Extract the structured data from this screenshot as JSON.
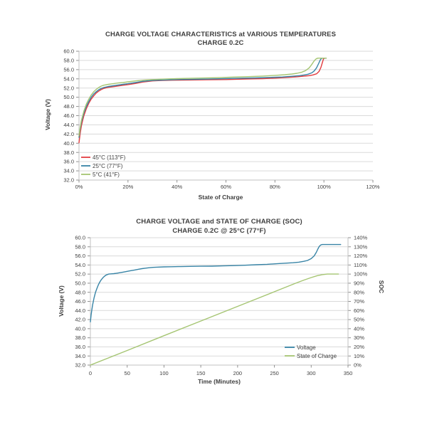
{
  "page": {
    "background": "#ffffff"
  },
  "colors": {
    "grid": "#dadada",
    "axis_line": "#c0c0c0",
    "tick_mark": "#8f8f8f",
    "text": "#3f3f3f",
    "series_red": "#e23c40",
    "series_blue": "#3884a6",
    "series_green": "#a5c572"
  },
  "chart_data": [
    {
      "type": "line",
      "title": "CHARGE VOLTAGE CHARACTERISTICS at VARIOUS TEMPERATURES",
      "subtitle": "CHARGE 0.2C",
      "xlabel": "State of Charge",
      "ylabel": "Voltage (V)",
      "xlim": [
        0,
        120
      ],
      "ylim": [
        32,
        60
      ],
      "grid": "horizontal",
      "legend_position": "inside-bottom-left",
      "xtick_labels": [
        "0%",
        "20%",
        "40%",
        "60%",
        "80%",
        "100%",
        "120%"
      ],
      "ytick_labels": [
        "60.0",
        "58.0",
        "56.0",
        "54.0",
        "52.0",
        "50.0",
        "48.0",
        "46.0",
        "44.0",
        "42.0",
        "40.0",
        "38.0",
        "36.0",
        "34.0",
        "32.0"
      ],
      "series": [
        {
          "name": "45°C (113°F)",
          "color": "#e23c40",
          "axis": "left",
          "points": [
            [
              0,
              40.1
            ],
            [
              0.5,
              42.2
            ],
            [
              1,
              43.8
            ],
            [
              1.5,
              45.0
            ],
            [
              2,
              46.0
            ],
            [
              3,
              47.5
            ],
            [
              4,
              48.7
            ],
            [
              5,
              49.6
            ],
            [
              6,
              50.3
            ],
            [
              7,
              50.9
            ],
            [
              8,
              51.3
            ],
            [
              9,
              51.65
            ],
            [
              10,
              51.9
            ],
            [
              11,
              52.05
            ],
            [
              12,
              52.15
            ],
            [
              14,
              52.3
            ],
            [
              16,
              52.45
            ],
            [
              18,
              52.6
            ],
            [
              20,
              52.75
            ],
            [
              23,
              53.0
            ],
            [
              26,
              53.3
            ],
            [
              30,
              53.55
            ],
            [
              34,
              53.65
            ],
            [
              38,
              53.7
            ],
            [
              45,
              53.75
            ],
            [
              52,
              53.8
            ],
            [
              60,
              53.85
            ],
            [
              68,
              53.95
            ],
            [
              75,
              54.05
            ],
            [
              80,
              54.15
            ],
            [
              85,
              54.3
            ],
            [
              89,
              54.45
            ],
            [
              92,
              54.6
            ],
            [
              94,
              54.7
            ],
            [
              95.5,
              54.85
            ],
            [
              97,
              55.1
            ],
            [
              98,
              55.6
            ],
            [
              98.8,
              56.5
            ],
            [
              99.4,
              57.6
            ],
            [
              99.8,
              58.3
            ],
            [
              100.2,
              58.5
            ],
            [
              100.9,
              58.5
            ]
          ]
        },
        {
          "name": "25°C (77°F)",
          "color": "#3884a6",
          "axis": "left",
          "points": [
            [
              0,
              41.3
            ],
            [
              0.5,
              43.2
            ],
            [
              1,
              44.6
            ],
            [
              2,
              46.6
            ],
            [
              3,
              48.0
            ],
            [
              4,
              49.1
            ],
            [
              5,
              50.0
            ],
            [
              6,
              50.7
            ],
            [
              7,
              51.2
            ],
            [
              8,
              51.6
            ],
            [
              9,
              51.9
            ],
            [
              10,
              52.1
            ],
            [
              12,
              52.35
            ],
            [
              14,
              52.5
            ],
            [
              16,
              52.65
            ],
            [
              18,
              52.8
            ],
            [
              20,
              52.95
            ],
            [
              23,
              53.2
            ],
            [
              26,
              53.45
            ],
            [
              30,
              53.65
            ],
            [
              35,
              53.75
            ],
            [
              40,
              53.85
            ],
            [
              48,
              53.9
            ],
            [
              56,
              54.0
            ],
            [
              64,
              54.1
            ],
            [
              72,
              54.2
            ],
            [
              78,
              54.3
            ],
            [
              83,
              54.4
            ],
            [
              87,
              54.55
            ],
            [
              90,
              54.7
            ],
            [
              92,
              54.85
            ],
            [
              93.5,
              55.0
            ],
            [
              95,
              55.3
            ],
            [
              96,
              55.7
            ],
            [
              97,
              56.4
            ],
            [
              97.8,
              57.3
            ],
            [
              98.5,
              58.1
            ],
            [
              99,
              58.45
            ],
            [
              99.5,
              58.5
            ],
            [
              100.9,
              58.5
            ]
          ]
        },
        {
          "name": "5°C (41°F)",
          "color": "#a5c572",
          "axis": "left",
          "points": [
            [
              0,
              41.6
            ],
            [
              0.5,
              43.5
            ],
            [
              1,
              45.0
            ],
            [
              2,
              47.0
            ],
            [
              3,
              48.5
            ],
            [
              4,
              49.6
            ],
            [
              5,
              50.5
            ],
            [
              6,
              51.2
            ],
            [
              7,
              51.7
            ],
            [
              8,
              52.1
            ],
            [
              9,
              52.4
            ],
            [
              10,
              52.6
            ],
            [
              12,
              52.8
            ],
            [
              14,
              52.95
            ],
            [
              16,
              53.1
            ],
            [
              18,
              53.2
            ],
            [
              20,
              53.35
            ],
            [
              23,
              53.55
            ],
            [
              26,
              53.7
            ],
            [
              30,
              53.85
            ],
            [
              35,
              53.95
            ],
            [
              40,
              54.05
            ],
            [
              48,
              54.15
            ],
            [
              56,
              54.25
            ],
            [
              64,
              54.4
            ],
            [
              70,
              54.5
            ],
            [
              75,
              54.6
            ],
            [
              80,
              54.75
            ],
            [
              84,
              54.9
            ],
            [
              87,
              55.05
            ],
            [
              89,
              55.2
            ],
            [
              91,
              55.45
            ],
            [
              92.5,
              55.8
            ],
            [
              94,
              56.4
            ],
            [
              95,
              57.1
            ],
            [
              96,
              57.9
            ],
            [
              96.8,
              58.35
            ],
            [
              97.5,
              58.5
            ],
            [
              100.9,
              58.5
            ]
          ]
        }
      ]
    },
    {
      "type": "line",
      "title": "CHARGE VOLTAGE and STATE OF CHARGE (SOC)",
      "subtitle": "CHARGE 0.2C @ 25°C (77°F)",
      "xlabel": "Time (Minutes)",
      "ylabel_left": "Voltage (V)",
      "ylabel_right": "SOC",
      "xlim": [
        0,
        350
      ],
      "ylim_left": [
        32,
        60
      ],
      "ylim_right": [
        0,
        140
      ],
      "grid": "horizontal",
      "legend_position": "inside-bottom-right",
      "xtick_labels": [
        "0",
        "50",
        "100",
        "150",
        "200",
        "250",
        "300",
        "350"
      ],
      "ytick_labels_left": [
        "60.0",
        "58.0",
        "56.0",
        "54.0",
        "52.0",
        "50.0",
        "48.0",
        "46.0",
        "44.0",
        "42.0",
        "40.0",
        "38.0",
        "36.0",
        "34.0",
        "32.0"
      ],
      "ytick_labels_right": [
        "140%",
        "130%",
        "120%",
        "110%",
        "100%",
        "90%",
        "80%",
        "70%",
        "60%",
        "50%",
        "40%",
        "30%",
        "20%",
        "10%",
        "0%"
      ],
      "series": [
        {
          "name": "Voltage",
          "color": "#3884a6",
          "axis": "left",
          "points": [
            [
              0,
              41.5
            ],
            [
              1,
              43.0
            ],
            [
              2,
              44.2
            ],
            [
              3,
              45.2
            ],
            [
              5,
              46.8
            ],
            [
              7,
              48.0
            ],
            [
              9,
              48.9
            ],
            [
              11,
              49.7
            ],
            [
              13,
              50.3
            ],
            [
              15,
              50.8
            ],
            [
              17,
              51.2
            ],
            [
              19,
              51.5
            ],
            [
              21,
              51.75
            ],
            [
              23,
              51.9
            ],
            [
              25,
              52.0
            ],
            [
              28,
              52.05
            ],
            [
              32,
              52.1
            ],
            [
              36,
              52.2
            ],
            [
              40,
              52.3
            ],
            [
              45,
              52.45
            ],
            [
              50,
              52.6
            ],
            [
              55,
              52.75
            ],
            [
              60,
              52.9
            ],
            [
              65,
              53.05
            ],
            [
              70,
              53.2
            ],
            [
              75,
              53.3
            ],
            [
              80,
              53.4
            ],
            [
              85,
              53.47
            ],
            [
              90,
              53.52
            ],
            [
              100,
              53.58
            ],
            [
              110,
              53.62
            ],
            [
              120,
              53.65
            ],
            [
              135,
              53.7
            ],
            [
              150,
              53.72
            ],
            [
              165,
              53.75
            ],
            [
              180,
              53.8
            ],
            [
              195,
              53.87
            ],
            [
              210,
              53.95
            ],
            [
              225,
              54.05
            ],
            [
              240,
              54.15
            ],
            [
              255,
              54.3
            ],
            [
              265,
              54.4
            ],
            [
              275,
              54.5
            ],
            [
              283,
              54.62
            ],
            [
              290,
              54.8
            ],
            [
              295,
              55.0
            ],
            [
              300,
              55.4
            ],
            [
              304,
              56.0
            ],
            [
              307,
              56.8
            ],
            [
              309,
              57.5
            ],
            [
              311,
              58.1
            ],
            [
              313,
              58.4
            ],
            [
              315,
              58.5
            ],
            [
              340,
              58.5
            ]
          ]
        },
        {
          "name": "State of Charge",
          "color": "#a5c572",
          "axis": "right",
          "points": [
            [
              0,
              0
            ],
            [
              50,
              16
            ],
            [
              100,
              32.3
            ],
            [
              150,
              48.4
            ],
            [
              200,
              64.5
            ],
            [
              250,
              80.6
            ],
            [
              280,
              90.3
            ],
            [
              290,
              93.4
            ],
            [
              300,
              96.2
            ],
            [
              308,
              98.2
            ],
            [
              315,
              99.4
            ],
            [
              322,
              100
            ],
            [
              337,
              100
            ]
          ]
        }
      ]
    }
  ]
}
